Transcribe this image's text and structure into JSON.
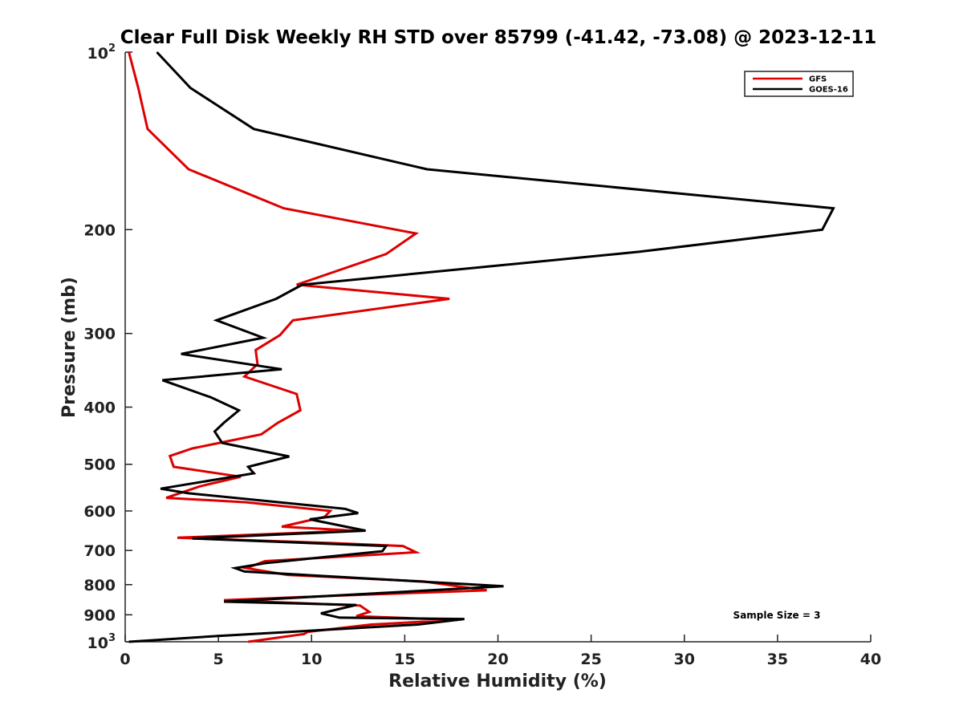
{
  "chart_data": {
    "type": "line",
    "title": "Clear Full Disk Weekly RH STD over 85799 (-41.42, -73.08) @ 2023-12-11",
    "xlabel": "Relative Humidity (%)",
    "ylabel": "Pressure (mb)",
    "xlim": [
      0,
      40
    ],
    "ylim": [
      100,
      1000
    ],
    "y_scale": "log",
    "y_reversed": true,
    "x_ticks": [
      "0",
      "5",
      "10",
      "15",
      "20",
      "25",
      "30",
      "35",
      "40"
    ],
    "y_ticks": [
      {
        "value": 100,
        "base": "10",
        "exp": "2"
      },
      {
        "value": 200,
        "label": "200"
      },
      {
        "value": 300,
        "label": "300"
      },
      {
        "value": 400,
        "label": "400"
      },
      {
        "value": 500,
        "label": "500"
      },
      {
        "value": 600,
        "label": "600"
      },
      {
        "value": 700,
        "label": "700"
      },
      {
        "value": 800,
        "label": "800"
      },
      {
        "value": 900,
        "label": "900"
      },
      {
        "value": 1000,
        "base": "10",
        "exp": "3"
      }
    ],
    "grid": false,
    "legend_position": "top-right",
    "annotation": "Sample Size = 3",
    "series": [
      {
        "name": "GFS",
        "color": "#dd0000",
        "points": [
          [
            0.2,
            100
          ],
          [
            0.7,
            115
          ],
          [
            1.2,
            135
          ],
          [
            3.4,
            158
          ],
          [
            8.5,
            184
          ],
          [
            15.6,
            203
          ],
          [
            14.0,
            220
          ],
          [
            9.2,
            248
          ],
          [
            17.4,
            262
          ],
          [
            9.0,
            285
          ],
          [
            8.3,
            302
          ],
          [
            7.0,
            320
          ],
          [
            7.1,
            338
          ],
          [
            6.4,
            355
          ],
          [
            9.2,
            380
          ],
          [
            9.4,
            405
          ],
          [
            8.2,
            425
          ],
          [
            7.3,
            445
          ],
          [
            3.6,
            470
          ],
          [
            2.4,
            484
          ],
          [
            2.6,
            505
          ],
          [
            6.2,
            525
          ],
          [
            4.0,
            545
          ],
          [
            2.2,
            570
          ],
          [
            6.5,
            580
          ],
          [
            11.0,
            600
          ],
          [
            10.7,
            614
          ],
          [
            8.4,
            638
          ],
          [
            12.3,
            648
          ],
          [
            2.8,
            666
          ],
          [
            11.0,
            680
          ],
          [
            14.9,
            688
          ],
          [
            15.6,
            705
          ],
          [
            7.5,
            730
          ],
          [
            6.5,
            750
          ],
          [
            8.7,
            770
          ],
          [
            16.0,
            790
          ],
          [
            19.4,
            818
          ],
          [
            11.5,
            835
          ],
          [
            5.3,
            850
          ],
          [
            12.6,
            868
          ],
          [
            13.1,
            890
          ],
          [
            12.4,
            905
          ],
          [
            17.8,
            918
          ],
          [
            13.2,
            935
          ],
          [
            9.8,
            962
          ],
          [
            9.6,
            970
          ],
          [
            6.6,
            1000
          ]
        ]
      },
      {
        "name": "GOES-16",
        "color": "#000000",
        "points": [
          [
            1.7,
            100
          ],
          [
            3.5,
            115
          ],
          [
            6.9,
            135
          ],
          [
            16.2,
            158
          ],
          [
            38.0,
            184
          ],
          [
            37.4,
            200
          ],
          [
            27.6,
            218
          ],
          [
            9.5,
            248
          ],
          [
            8.1,
            262
          ],
          [
            4.9,
            285
          ],
          [
            7.4,
            305
          ],
          [
            3.0,
            325
          ],
          [
            8.4,
            345
          ],
          [
            2.0,
            360
          ],
          [
            4.6,
            385
          ],
          [
            6.1,
            405
          ],
          [
            5.3,
            425
          ],
          [
            4.8,
            440
          ],
          [
            5.2,
            460
          ],
          [
            8.8,
            485
          ],
          [
            6.6,
            505
          ],
          [
            6.9,
            518
          ],
          [
            1.9,
            550
          ],
          [
            3.4,
            560
          ],
          [
            11.8,
            595
          ],
          [
            12.5,
            605
          ],
          [
            9.9,
            620
          ],
          [
            12.9,
            648
          ],
          [
            3.6,
            668
          ],
          [
            14.0,
            688
          ],
          [
            13.8,
            702
          ],
          [
            7.6,
            735
          ],
          [
            5.9,
            750
          ],
          [
            6.4,
            760
          ],
          [
            20.3,
            805
          ],
          [
            5.3,
            855
          ],
          [
            12.4,
            866
          ],
          [
            10.5,
            895
          ],
          [
            11.5,
            910
          ],
          [
            18.2,
            915
          ],
          [
            15.7,
            935
          ],
          [
            4.9,
            978
          ],
          [
            0.2,
            1000
          ]
        ]
      }
    ]
  }
}
